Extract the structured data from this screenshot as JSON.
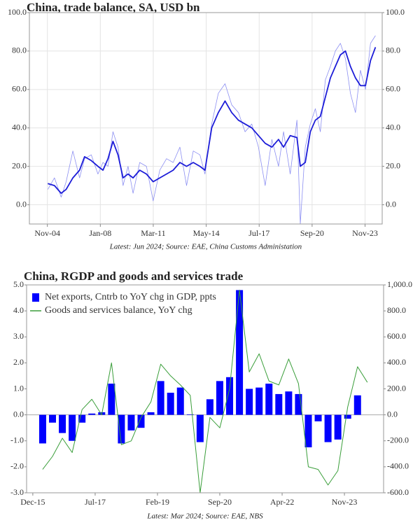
{
  "chart_data": [
    {
      "type": "line",
      "title": "China, trade balance, SA, USD bn",
      "note": "Latest: Jun 2024; Source: EAE, China Customs Administation",
      "x": [
        2004.9,
        2005.3,
        2005.7,
        2006.0,
        2006.4,
        2006.8,
        2007.1,
        2007.5,
        2007.9,
        2008.2,
        2008.5,
        2008.8,
        2009.1,
        2009.4,
        2009.7,
        2010.0,
        2010.4,
        2010.8,
        2011.2,
        2011.6,
        2012.0,
        2012.4,
        2012.8,
        2013.2,
        2013.6,
        2014.0,
        2014.3,
        2014.7,
        2015.1,
        2015.5,
        2015.9,
        2016.3,
        2016.7,
        2017.1,
        2017.5,
        2017.9,
        2018.3,
        2018.7,
        2019.0,
        2019.4,
        2019.8,
        2020.0,
        2020.3,
        2020.6,
        2020.9,
        2021.2,
        2021.5,
        2021.8,
        2022.1,
        2022.4,
        2022.7,
        2023.0,
        2023.3,
        2023.6,
        2023.9,
        2024.2,
        2024.5
      ],
      "series": [
        {
          "color": "#8c8ff2",
          "linewidth": 0.8,
          "values": [
            8,
            14,
            4,
            12,
            28,
            14,
            24,
            26,
            16,
            22,
            20,
            38,
            30,
            10,
            20,
            6,
            22,
            20,
            2,
            18,
            24,
            22,
            30,
            10,
            28,
            26,
            16,
            42,
            58,
            63,
            52,
            48,
            38,
            42,
            30,
            10,
            34,
            20,
            38,
            16,
            44,
            -10,
            30,
            42,
            50,
            38,
            65,
            72,
            80,
            84,
            76,
            58,
            48,
            70,
            60,
            84,
            88
          ]
        },
        {
          "color": "#1c1cd8",
          "linewidth": 1.8,
          "values": [
            11,
            10,
            6,
            8,
            14,
            18,
            25,
            23,
            20,
            18,
            24,
            33,
            26,
            14,
            16,
            14,
            18,
            16,
            12,
            14,
            16,
            18,
            22,
            20,
            22,
            20,
            18,
            40,
            48,
            54,
            48,
            44,
            42,
            40,
            36,
            32,
            30,
            34,
            30,
            36,
            35,
            20,
            22,
            38,
            44,
            46,
            56,
            66,
            72,
            78,
            80,
            72,
            66,
            62,
            62,
            75,
            82
          ]
        }
      ],
      "xlim": [
        2003.8,
        2024.9
      ],
      "xticks": [
        {
          "value": 2004.875,
          "label": "Nov-04"
        },
        {
          "value": 2008.042,
          "label": "Jan-08"
        },
        {
          "value": 2011.208,
          "label": "Mar-11"
        },
        {
          "value": 2014.375,
          "label": "May-14"
        },
        {
          "value": 2017.542,
          "label": "Jul-17"
        },
        {
          "value": 2020.708,
          "label": "Sep-20"
        },
        {
          "value": 2023.875,
          "label": "Nov-23"
        }
      ],
      "ylim": [
        -10,
        100
      ],
      "yticks": [
        {
          "value": 0,
          "label": "0.0"
        },
        {
          "value": 20,
          "label": "20.0"
        },
        {
          "value": 40,
          "label": "40.0"
        },
        {
          "value": 60,
          "label": "60.0"
        },
        {
          "value": 80,
          "label": "80.0"
        },
        {
          "value": 100,
          "label": "100.0"
        }
      ],
      "mirror_y_axis": true,
      "grid": true
    },
    {
      "type": "bar",
      "title": "China, RGDP and goods and services trade",
      "note": "Latest: Mar 2024; Source: EAE, NBS",
      "series": [
        {
          "name": "Net exports, Cntrb to YoY chg in GDP, ppts",
          "type": "bar",
          "color": "#0000ff",
          "x": [
            2016.208,
            2016.458,
            2016.708,
            2016.958,
            2017.208,
            2017.458,
            2017.708,
            2017.958,
            2018.208,
            2018.458,
            2018.708,
            2018.958,
            2019.208,
            2019.458,
            2019.708,
            2019.958,
            2020.208,
            2020.458,
            2020.708,
            2020.958,
            2021.208,
            2021.458,
            2021.708,
            2021.958,
            2022.208,
            2022.458,
            2022.708,
            2022.958,
            2023.208,
            2023.458,
            2023.708,
            2023.958,
            2024.208
          ],
          "values": [
            -1.1,
            -0.3,
            -0.7,
            -1.0,
            -0.3,
            0.05,
            0.1,
            1.2,
            -1.1,
            -0.6,
            -0.5,
            0.1,
            1.3,
            0.85,
            1.05,
            0.02,
            -1.05,
            0.6,
            1.3,
            1.45,
            4.8,
            1.0,
            1.05,
            1.2,
            0.8,
            0.9,
            0.8,
            -1.25,
            -0.25,
            -1.05,
            -0.95,
            -0.15,
            0.75
          ]
        },
        {
          "name": "Goods and services balance, YoY chg",
          "type": "line",
          "axis": "y2",
          "color": "#3a9e3a",
          "linewidth": 1,
          "x": [
            2016.208,
            2016.458,
            2016.708,
            2016.958,
            2017.208,
            2017.458,
            2017.708,
            2017.958,
            2018.208,
            2018.458,
            2018.708,
            2018.958,
            2019.208,
            2019.458,
            2019.708,
            2019.958,
            2020.208,
            2020.458,
            2020.708,
            2020.958,
            2021.208,
            2021.458,
            2021.708,
            2021.958,
            2022.208,
            2022.458,
            2022.708,
            2022.958,
            2023.208,
            2023.458,
            2023.708,
            2023.958,
            2024.208,
            2024.458
          ],
          "values": [
            -420,
            -320,
            -180,
            -290,
            40,
            120,
            0,
            400,
            -230,
            -200,
            -20,
            100,
            390,
            300,
            230,
            150,
            -600,
            -20,
            -100,
            200,
            960,
            330,
            470,
            260,
            230,
            430,
            240,
            -400,
            -420,
            -540,
            -430,
            60,
            370,
            250
          ]
        }
      ],
      "xlim": [
        2015.8,
        2024.87
      ],
      "xticks": [
        {
          "value": 2015.958,
          "label": "Dec-15"
        },
        {
          "value": 2017.542,
          "label": "Jul-17"
        },
        {
          "value": 2019.125,
          "label": "Feb-19"
        },
        {
          "value": 2020.708,
          "label": "Sep-20"
        },
        {
          "value": 2022.292,
          "label": "Apr-22"
        },
        {
          "value": 2023.875,
          "label": "Nov-23"
        }
      ],
      "ylim": [
        -3,
        5
      ],
      "yticks": [
        {
          "value": -3,
          "label": "-3.0"
        },
        {
          "value": -2,
          "label": "-2.0"
        },
        {
          "value": -1,
          "label": "-1.0"
        },
        {
          "value": 0,
          "label": "0.0"
        },
        {
          "value": 1,
          "label": "1.0"
        },
        {
          "value": 2,
          "label": "2.0"
        },
        {
          "value": 3,
          "label": "3.0"
        },
        {
          "value": 4,
          "label": "4.0"
        },
        {
          "value": 5,
          "label": "5.0"
        }
      ],
      "y2lim": [
        -600,
        1000
      ],
      "y2ticks": [
        {
          "value": -600,
          "label": "-600.0"
        },
        {
          "value": -400,
          "label": "-400.0"
        },
        {
          "value": -200,
          "label": "-200.0"
        },
        {
          "value": 0,
          "label": "0.0"
        },
        {
          "value": 200,
          "label": "200.0"
        },
        {
          "value": 400,
          "label": "400.0"
        },
        {
          "value": 600,
          "label": "600.0"
        },
        {
          "value": 800,
          "label": "800.0"
        },
        {
          "value": 1000,
          "label": "1,000.0"
        }
      ],
      "legend": "upper left",
      "zero_line": true,
      "grid": false
    }
  ]
}
